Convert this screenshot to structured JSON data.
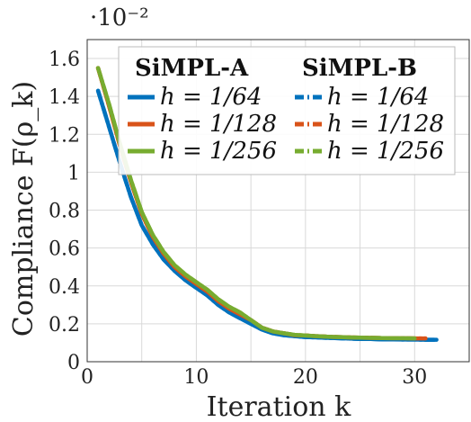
{
  "chart_data": {
    "type": "line",
    "title": "",
    "xlabel": "Iteration k",
    "ylabel": "Compliance F(ρ_k)",
    "y_scale_label": "·10⁻²",
    "xlim": [
      0,
      35
    ],
    "ylim": [
      0,
      1.7
    ],
    "x_ticks": [
      0,
      10,
      20,
      30
    ],
    "y_ticks": [
      0,
      0.2,
      0.4,
      0.6,
      0.8,
      1,
      1.2,
      1.4,
      1.6
    ],
    "grid": true,
    "legend_placement": "top-right",
    "legend_groups": [
      "SiMPL-A",
      "SiMPL-B"
    ],
    "series": [
      {
        "name": "h = 1/64",
        "group": "SiMPL-A",
        "style": "solid",
        "color": "#0072BD",
        "x": [
          1,
          2,
          3,
          4,
          5,
          6,
          7,
          8,
          9,
          10,
          11,
          12,
          13,
          14,
          15,
          16,
          17,
          18,
          19,
          20,
          21,
          22,
          23,
          24,
          25,
          26,
          27,
          28,
          29,
          30,
          31,
          32
        ],
        "y": [
          1.43,
          1.24,
          1.05,
          0.87,
          0.72,
          0.62,
          0.54,
          0.48,
          0.43,
          0.39,
          0.35,
          0.3,
          0.26,
          0.23,
          0.2,
          0.17,
          0.15,
          0.14,
          0.135,
          0.13,
          0.128,
          0.126,
          0.124,
          0.122,
          0.12,
          0.12,
          0.118,
          0.118,
          0.117,
          0.117,
          0.116,
          0.116
        ]
      },
      {
        "name": "h = 1/128",
        "group": "SiMPL-A",
        "style": "solid",
        "color": "#D95319",
        "x": [
          1,
          2,
          3,
          4,
          5,
          6,
          7,
          8,
          9,
          10,
          11,
          12,
          13,
          14,
          15,
          16,
          17,
          18,
          19,
          20,
          21,
          22,
          23,
          24,
          25,
          26,
          27,
          28,
          29,
          30,
          31
        ],
        "y": [
          1.55,
          1.35,
          1.14,
          0.95,
          0.78,
          0.66,
          0.57,
          0.5,
          0.45,
          0.41,
          0.37,
          0.32,
          0.28,
          0.25,
          0.22,
          0.18,
          0.16,
          0.15,
          0.14,
          0.138,
          0.135,
          0.132,
          0.13,
          0.128,
          0.127,
          0.126,
          0.125,
          0.124,
          0.124,
          0.123,
          0.123
        ]
      },
      {
        "name": "h = 1/256",
        "group": "SiMPL-A",
        "style": "solid",
        "color": "#77AC30",
        "x": [
          1,
          2,
          3,
          4,
          5,
          6,
          7,
          8,
          9,
          10,
          11,
          12,
          13,
          14,
          15,
          16,
          17,
          18,
          19,
          20,
          21,
          22,
          23,
          24,
          25,
          26,
          27,
          28,
          29,
          30
        ],
        "y": [
          1.55,
          1.36,
          1.15,
          0.96,
          0.79,
          0.67,
          0.58,
          0.51,
          0.46,
          0.42,
          0.38,
          0.33,
          0.29,
          0.26,
          0.22,
          0.18,
          0.16,
          0.15,
          0.142,
          0.138,
          0.135,
          0.132,
          0.13,
          0.128,
          0.127,
          0.126,
          0.125,
          0.124,
          0.124,
          0.123
        ]
      },
      {
        "name": "h = 1/64",
        "group": "SiMPL-B",
        "style": "dashdot",
        "color": "#0072BD",
        "x": [
          1,
          2,
          3,
          4,
          5,
          6,
          7,
          8,
          9,
          10,
          11,
          12,
          13,
          14,
          15,
          16,
          17,
          18,
          19,
          20,
          21,
          22,
          23,
          24,
          25,
          26,
          27,
          28,
          29,
          30,
          31,
          32
        ],
        "y": [
          1.43,
          1.24,
          1.05,
          0.87,
          0.72,
          0.62,
          0.54,
          0.48,
          0.43,
          0.39,
          0.35,
          0.3,
          0.26,
          0.23,
          0.2,
          0.17,
          0.15,
          0.14,
          0.135,
          0.13,
          0.128,
          0.126,
          0.124,
          0.122,
          0.12,
          0.12,
          0.118,
          0.118,
          0.117,
          0.117,
          0.116,
          0.116
        ]
      },
      {
        "name": "h = 1/128",
        "group": "SiMPL-B",
        "style": "dashdot",
        "color": "#D95319",
        "x": [
          1,
          2,
          3,
          4,
          5,
          6,
          7,
          8,
          9,
          10,
          11,
          12,
          13,
          14,
          15,
          16,
          17,
          18,
          19,
          20,
          21,
          22,
          23,
          24,
          25,
          26,
          27,
          28,
          29,
          30,
          31
        ],
        "y": [
          1.55,
          1.35,
          1.14,
          0.95,
          0.78,
          0.66,
          0.57,
          0.5,
          0.45,
          0.41,
          0.37,
          0.32,
          0.28,
          0.25,
          0.22,
          0.18,
          0.16,
          0.15,
          0.14,
          0.138,
          0.135,
          0.132,
          0.13,
          0.128,
          0.127,
          0.126,
          0.125,
          0.124,
          0.124,
          0.123,
          0.123
        ]
      },
      {
        "name": "h = 1/256",
        "group": "SiMPL-B",
        "style": "dashdot",
        "color": "#77AC30",
        "x": [
          1,
          2,
          3,
          4,
          5,
          6,
          7,
          8,
          9,
          10,
          11,
          12,
          13,
          14,
          15,
          16,
          17,
          18,
          19,
          20,
          21,
          22,
          23,
          24,
          25,
          26,
          27,
          28,
          29,
          30
        ],
        "y": [
          1.55,
          1.36,
          1.15,
          0.96,
          0.79,
          0.67,
          0.58,
          0.51,
          0.46,
          0.42,
          0.38,
          0.33,
          0.29,
          0.26,
          0.22,
          0.18,
          0.16,
          0.15,
          0.142,
          0.138,
          0.135,
          0.132,
          0.13,
          0.128,
          0.127,
          0.126,
          0.125,
          0.124,
          0.124,
          0.123
        ]
      }
    ]
  }
}
